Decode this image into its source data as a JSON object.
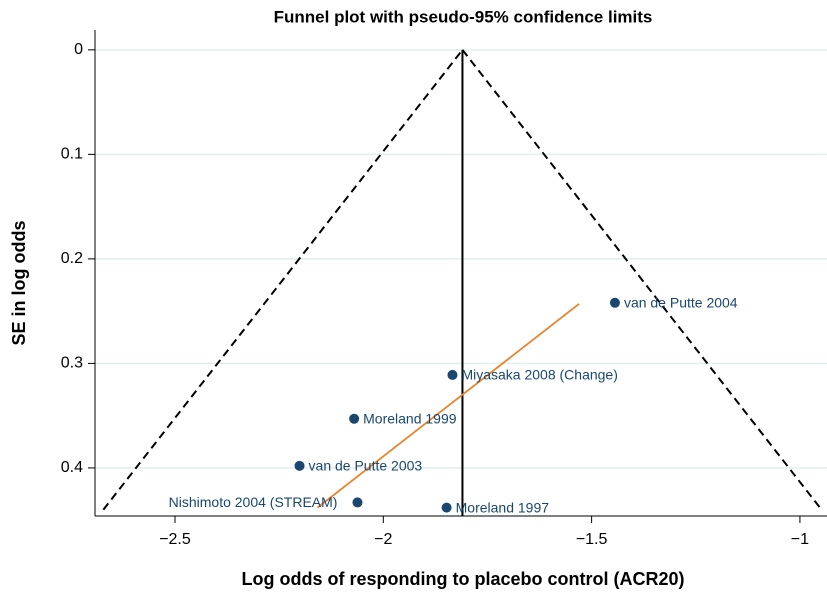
{
  "chart_data": {
    "type": "scatter",
    "title": "Funnel plot with pseudo-95% confidence limits",
    "xlabel": "Log odds of responding to placebo control (ACR20)",
    "ylabel": "SE in log odds",
    "point_labels": [
      "van de Putte 2004",
      "Miyasaka 2008 (Change)",
      "Moreland 1999",
      "van de Putte 2003",
      "Nishimoto 2004 (STREAM)",
      "Moreland 1997"
    ],
    "label_side": [
      "right",
      "right",
      "right",
      "right",
      "left",
      "right"
    ],
    "x": [
      -1.444,
      -1.834,
      -2.07,
      -2.201,
      -2.062,
      -1.848
    ],
    "values": [
      0.242,
      0.311,
      0.353,
      0.398,
      0.433,
      0.438
    ],
    "color": "#1a476f",
    "lines": [
      {
        "x": [
          -2.672,
          -1.81
        ],
        "values": [
          0.44,
          0
        ],
        "color": "#000000",
        "dash": true
      },
      {
        "x": [
          -1.81,
          -0.948
        ],
        "values": [
          0,
          0.44
        ],
        "color": "#000000",
        "dash": true
      },
      {
        "x": [
          -1.81,
          -1.81
        ],
        "values": [
          0,
          0.446
        ],
        "color": "#000000",
        "dash": false
      },
      {
        "x": [
          -2.158,
          -1.53
        ],
        "values": [
          0.438,
          0.243
        ],
        "color": "#e8842a",
        "dash": false
      }
    ],
    "xlim": [
      -2.692,
      -0.935
    ],
    "ylim": [
      -0.019,
      0.446
    ],
    "y_inverted": true,
    "xticks": [
      {
        "value": -2.5,
        "label": "−2.5"
      },
      {
        "value": -2,
        "label": "−2"
      },
      {
        "value": -1.5,
        "label": "−1.5"
      },
      {
        "value": -1,
        "label": "−1"
      }
    ],
    "yticks": [
      0,
      0.1,
      0.2,
      0.3,
      0.4
    ],
    "grid": true
  }
}
